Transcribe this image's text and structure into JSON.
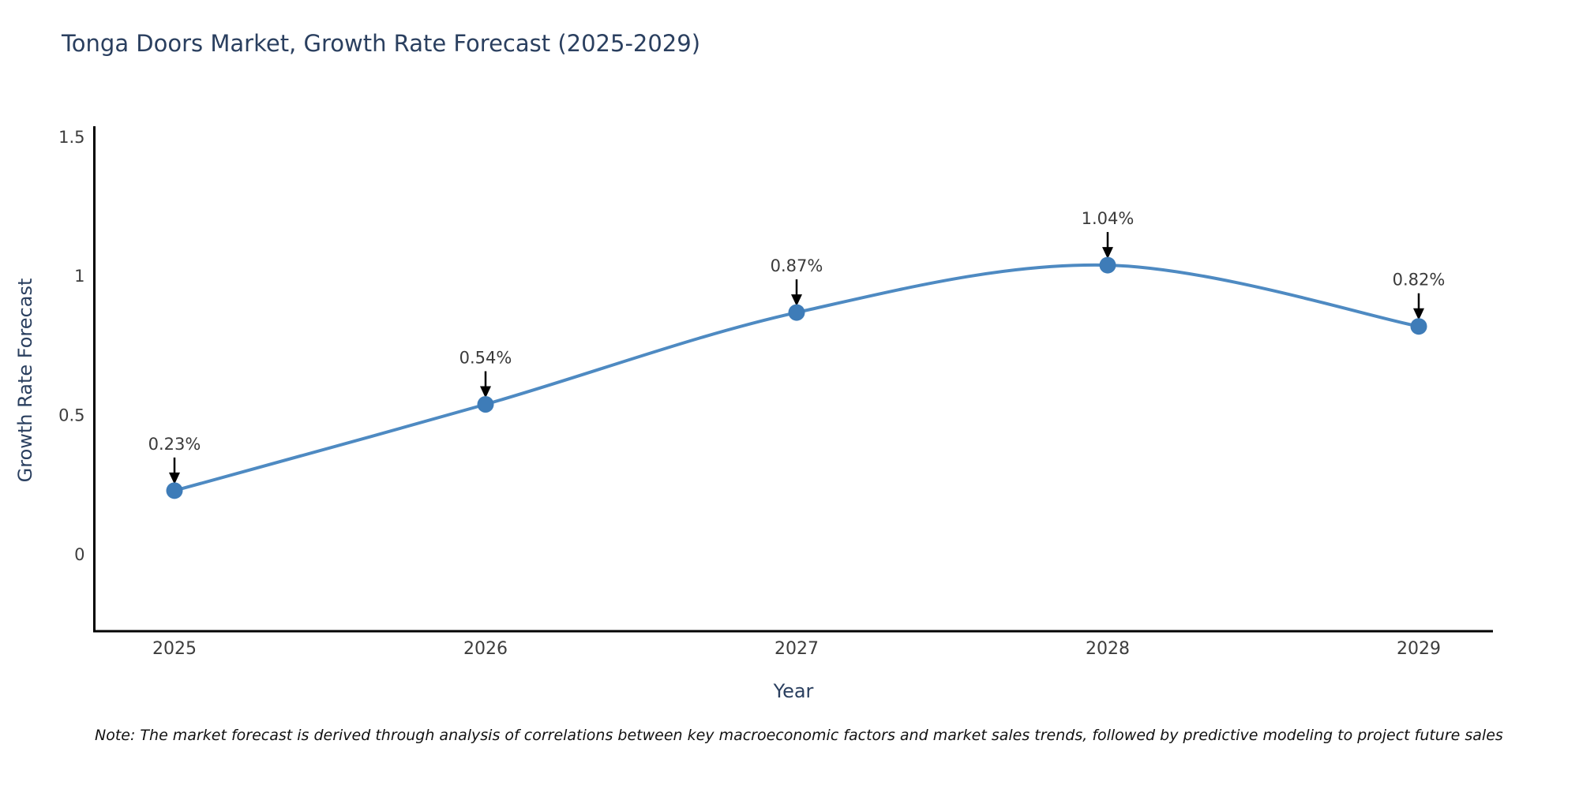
{
  "title": "Tonga Doors Market, Growth Rate Forecast (2025-2029)",
  "note": "Note: The market forecast is derived through analysis of correlations between key macroeconomic factors and market sales trends, followed by predictive modeling to project future sales",
  "chart_data": {
    "type": "line",
    "title": "Tonga Doors Market, Growth Rate Forecast (2025-2029)",
    "xlabel": "Year",
    "ylabel": "Growth Rate Forecast",
    "x": [
      "2025",
      "2026",
      "2027",
      "2028",
      "2029"
    ],
    "values": [
      0.23,
      0.54,
      0.87,
      1.04,
      0.82
    ],
    "point_labels": [
      "0.23%",
      "0.54%",
      "0.87%",
      "1.04%",
      "0.82%"
    ],
    "yticks": [
      0,
      0.5,
      1,
      1.5
    ],
    "ylim": [
      -0.275,
      1.54
    ],
    "grid": false,
    "legend": "none",
    "line_shape": "spline",
    "annotation_style": "value label above point with downward black arrow"
  },
  "colors": {
    "line": "#4e8ac2",
    "marker": "#3e7cb8",
    "axis": "#000000",
    "tick_label": "#3d3d3d",
    "annotation_text": "#3a3a3a",
    "arrow": "#000000",
    "title_text": "#2a3f5f",
    "background": "#ffffff"
  }
}
